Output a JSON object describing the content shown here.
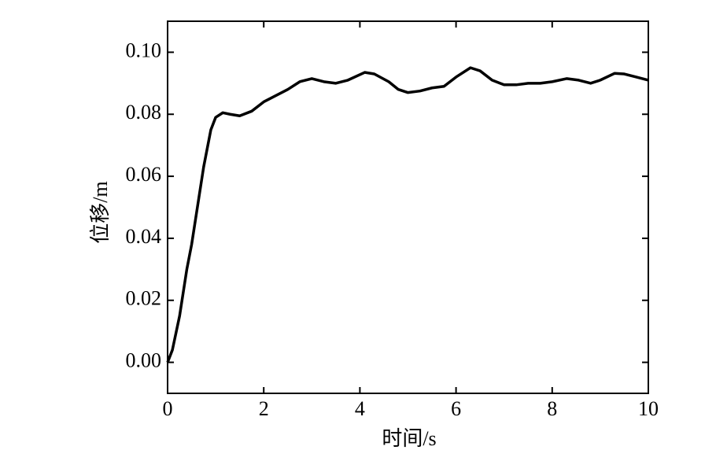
{
  "chart_data": {
    "type": "line",
    "xlabel": "时间/s",
    "ylabel": "位移/m",
    "x": [
      0,
      0.1,
      0.25,
      0.4,
      0.5,
      0.6,
      0.75,
      0.9,
      1.0,
      1.15,
      1.3,
      1.5,
      1.75,
      2.0,
      2.25,
      2.5,
      2.75,
      3.0,
      3.25,
      3.5,
      3.75,
      4.1,
      4.3,
      4.6,
      4.8,
      5.0,
      5.25,
      5.5,
      5.75,
      6.0,
      6.3,
      6.5,
      6.75,
      7.0,
      7.25,
      7.5,
      7.75,
      8.0,
      8.3,
      8.55,
      8.8,
      9.0,
      9.3,
      9.5,
      9.75,
      10.0
    ],
    "values": [
      0.0,
      0.004,
      0.015,
      0.03,
      0.038,
      0.048,
      0.063,
      0.075,
      0.079,
      0.0805,
      0.08,
      0.0795,
      0.081,
      0.084,
      0.086,
      0.088,
      0.0905,
      0.0915,
      0.0905,
      0.09,
      0.091,
      0.0935,
      0.093,
      0.0905,
      0.088,
      0.087,
      0.0875,
      0.0885,
      0.089,
      0.092,
      0.095,
      0.094,
      0.091,
      0.0895,
      0.0895,
      0.09,
      0.09,
      0.0905,
      0.0915,
      0.091,
      0.09,
      0.091,
      0.0932,
      0.093,
      0.092,
      0.091
    ],
    "color": "#000000",
    "xlim": [
      0,
      10
    ],
    "xticks": [
      0,
      2,
      4,
      6,
      8,
      10
    ],
    "ylim": [
      -0.01,
      0.11
    ],
    "yticks": [
      {
        "value": 0,
        "label": "0.00"
      },
      {
        "value": 0.02,
        "label": "0.02"
      },
      {
        "value": 0.04,
        "label": "0.04"
      },
      {
        "value": 0.06,
        "label": "0.06"
      },
      {
        "value": 0.08,
        "label": "0.08"
      },
      {
        "value": 0.1,
        "label": "0.10"
      }
    ]
  }
}
